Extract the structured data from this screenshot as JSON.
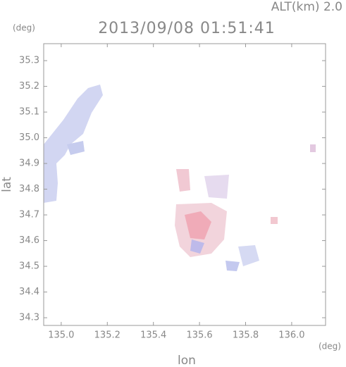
{
  "chart_data": {
    "type": "radar-map",
    "title": "2013/09/08 01:51:41",
    "annotation": "ALT(km)  2.0",
    "y_unit": "(deg)",
    "x_unit": "(deg)",
    "x_label": "lon",
    "y_label": "lat",
    "xlim": [
      134.924,
      136.147
    ],
    "ylim": [
      34.27,
      35.366
    ],
    "xticks": [
      {
        "value": 135,
        "label": "135.0"
      },
      135.2,
      135.4,
      135.6,
      135.8,
      {
        "value": 136,
        "label": "136.0"
      }
    ],
    "yticks": [
      34.3,
      34.4,
      34.5,
      34.6,
      34.7,
      34.8,
      34.9,
      {
        "value": 35,
        "label": "35.0"
      },
      35.1,
      35.2,
      35.3
    ],
    "axis_color": "#999999"
  }
}
